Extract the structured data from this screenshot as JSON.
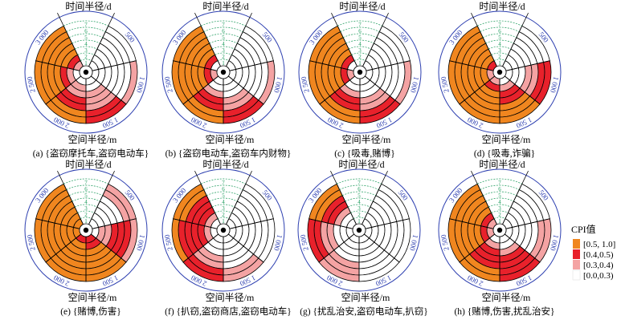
{
  "time_axis_title": "时间半径/d",
  "space_axis_title": "空间半径/m",
  "time_ticks": [
    "1",
    "2",
    "3",
    "4",
    "5",
    "6",
    "7"
  ],
  "space_ticks": [
    "500",
    "1 000",
    "1 500",
    "2 000",
    "2 500",
    "3 000"
  ],
  "levels": [
    {
      "label": "[0.0,0.3)",
      "color": "#ffffff"
    },
    {
      "label": "[0.3,0.4)",
      "color": "#f4a3a3"
    },
    {
      "label": "[0.4,0.5)",
      "color": "#e8212b"
    },
    {
      "label": "[0.5, 1.0]",
      "color": "#f0861f"
    }
  ],
  "legend": {
    "title": "CPI值"
  },
  "chart_data": [
    {
      "type": "heatmap",
      "caption": "(a) {盗窃摩托车,盗窃电动车}",
      "levels_by_space_then_time": [
        [
          0,
          0,
          0,
          0,
          0,
          0,
          0
        ],
        [
          0,
          0,
          0,
          0,
          0,
          0,
          1
        ],
        [
          0,
          0,
          1,
          1,
          1,
          2,
          2
        ],
        [
          0,
          1,
          1,
          2,
          2,
          3,
          3
        ],
        [
          0,
          1,
          2,
          3,
          3,
          3,
          3
        ],
        [
          1,
          2,
          3,
          3,
          3,
          3,
          3
        ]
      ]
    },
    {
      "type": "heatmap",
      "caption": "(b) {盗窃电动车,盗窃车内财物}",
      "levels_by_space_then_time": [
        [
          0,
          0,
          0,
          0,
          0,
          0,
          0
        ],
        [
          0,
          0,
          0,
          0,
          0,
          0,
          1
        ],
        [
          0,
          0,
          0,
          1,
          1,
          2,
          2
        ],
        [
          0,
          0,
          1,
          2,
          2,
          3,
          3
        ],
        [
          1,
          2,
          3,
          3,
          3,
          3,
          3
        ],
        [
          0,
          2,
          3,
          3,
          3,
          3,
          3
        ]
      ]
    },
    {
      "type": "heatmap",
      "caption": "(c) {吸毒,赌博}",
      "levels_by_space_then_time": [
        [
          0,
          0,
          0,
          0,
          0,
          0,
          0
        ],
        [
          0,
          0,
          0,
          0,
          0,
          0,
          1
        ],
        [
          0,
          0,
          0,
          1,
          1,
          2,
          2
        ],
        [
          0,
          0,
          1,
          2,
          2,
          3,
          3
        ],
        [
          1,
          2,
          3,
          3,
          3,
          3,
          3
        ],
        [
          0,
          2,
          3,
          3,
          3,
          3,
          3
        ]
      ]
    },
    {
      "type": "heatmap",
      "caption": "(d) {吸毒,诈骗}",
      "levels_by_space_then_time": [
        [
          0,
          0,
          0,
          0,
          0,
          0,
          0
        ],
        [
          0,
          0,
          0,
          1,
          1,
          2,
          2
        ],
        [
          0,
          1,
          2,
          2,
          3,
          3,
          3
        ],
        [
          1,
          2,
          3,
          3,
          3,
          3,
          3
        ],
        [
          1,
          3,
          3,
          3,
          3,
          3,
          3
        ],
        [
          2,
          3,
          3,
          3,
          3,
          3,
          3
        ]
      ]
    },
    {
      "type": "heatmap",
      "caption": "(e) {赌博,伤害}",
      "levels_by_space_then_time": [
        [
          0,
          0,
          0,
          0,
          0,
          1,
          1
        ],
        [
          0,
          1,
          1,
          2,
          2,
          2,
          1
        ],
        [
          2,
          2,
          3,
          3,
          3,
          3,
          3
        ],
        [
          2,
          3,
          3,
          3,
          3,
          3,
          3
        ],
        [
          3,
          3,
          3,
          3,
          3,
          3,
          3
        ],
        [
          3,
          3,
          3,
          3,
          3,
          3,
          3
        ]
      ]
    },
    {
      "type": "heatmap",
      "caption": "(f) {扒窃,盗窃商店,盗窃电动车}",
      "levels_by_space_then_time": [
        [
          0,
          0,
          0,
          0,
          0,
          0,
          0
        ],
        [
          0,
          0,
          0,
          0,
          0,
          0,
          0
        ],
        [
          0,
          0,
          0,
          0,
          0,
          1,
          1
        ],
        [
          0,
          0,
          0,
          1,
          1,
          2,
          2
        ],
        [
          0,
          1,
          2,
          2,
          2,
          2,
          3
        ],
        [
          0,
          1,
          2,
          2,
          2,
          3,
          3
        ]
      ]
    },
    {
      "type": "heatmap",
      "caption": "(g) {扰乱治安,盗窃电动车,扒窃}",
      "levels_by_space_then_time": [
        [
          0,
          0,
          0,
          0,
          0,
          0,
          0
        ],
        [
          0,
          0,
          0,
          0,
          0,
          0,
          0
        ],
        [
          0,
          0,
          0,
          0,
          0,
          0,
          0
        ],
        [
          0,
          0,
          0,
          0,
          1,
          1,
          1
        ],
        [
          0,
          0,
          0,
          1,
          1,
          2,
          2
        ],
        [
          0,
          0,
          1,
          2,
          2,
          3,
          3
        ]
      ]
    },
    {
      "type": "heatmap",
      "caption": "(h) {赌博,伤害,扰乱治安}",
      "levels_by_space_then_time": [
        [
          0,
          0,
          0,
          0,
          0,
          0,
          0
        ],
        [
          0,
          0,
          0,
          0,
          0,
          1,
          1
        ],
        [
          0,
          0,
          1,
          2,
          2,
          2,
          2
        ],
        [
          0,
          1,
          2,
          2,
          2,
          3,
          3
        ],
        [
          1,
          2,
          3,
          3,
          3,
          3,
          3
        ],
        [
          1,
          2,
          3,
          3,
          3,
          3,
          3
        ]
      ]
    }
  ]
}
